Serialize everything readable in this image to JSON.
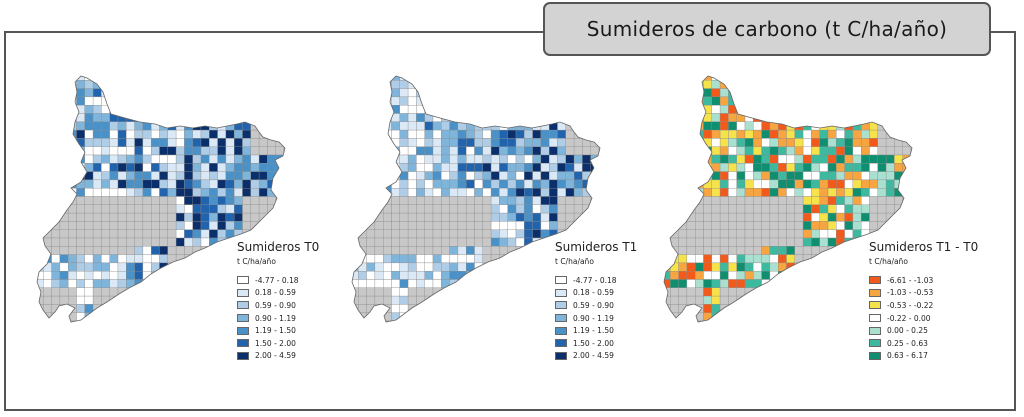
{
  "title": "Sumideros de carbono (t C/ha/año)",
  "maps": [
    {
      "legend_title": "Sumideros T0",
      "unit": "t C/ha/año",
      "classes": [
        {
          "label": "-4.77 - 0.18",
          "color": "#ffffff"
        },
        {
          "label": "0.18 - 0.59",
          "color": "#dbe9f6"
        },
        {
          "label": "0.59 - 0.90",
          "color": "#b0cde7"
        },
        {
          "label": "0.90 - 1.19",
          "color": "#80b5db"
        },
        {
          "label": "1.19 - 1.50",
          "color": "#4a91c8"
        },
        {
          "label": "1.50 - 2.00",
          "color": "#2163ac"
        },
        {
          "label": "2.00 - 4.59",
          "color": "#0b2f6b"
        }
      ]
    },
    {
      "legend_title": "Sumideros T1",
      "unit": "t C/ha/año",
      "classes": [
        {
          "label": "-4.77 - 0.18",
          "color": "#ffffff"
        },
        {
          "label": "0.18 - 0.59",
          "color": "#dbe9f6"
        },
        {
          "label": "0.59 - 0.90",
          "color": "#b0cde7"
        },
        {
          "label": "0.90 - 1.19",
          "color": "#80b5db"
        },
        {
          "label": "1.19 - 1.50",
          "color": "#4a91c8"
        },
        {
          "label": "1.50 - 2.00",
          "color": "#2163ac"
        },
        {
          "label": "2.00 - 4.59",
          "color": "#0b2f6b"
        }
      ]
    },
    {
      "legend_title": "Sumideros T1 - T0",
      "unit": "t C/ha/año",
      "classes": [
        {
          "label": "-6.61 - -1.03",
          "color": "#f25a1c"
        },
        {
          "label": "-1.03 - -0.53",
          "color": "#f7a540"
        },
        {
          "label": "-0.53 - -0.22",
          "color": "#f6e24a"
        },
        {
          "label": "-0.22 - 0.00",
          "color": "#ffffff"
        },
        {
          "label": "0.00 - 0.25",
          "color": "#a9e0cf"
        },
        {
          "label": "0.25 - 0.63",
          "color": "#3db9a0"
        },
        {
          "label": "0.63 - 6.17",
          "color": "#0f8f6f"
        }
      ]
    }
  ],
  "colors": {
    "no_data": "#c8c8c8",
    "grid_line": "#8a8a8a",
    "frame": "#555555",
    "title_tab": "#d3d3d3"
  }
}
